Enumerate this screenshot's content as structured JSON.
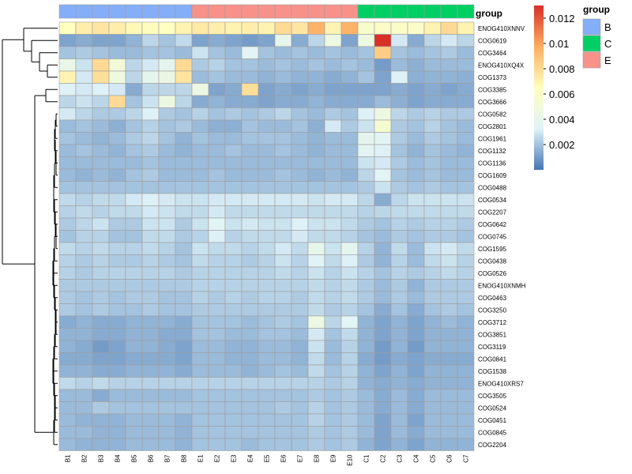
{
  "chart_data": {
    "type": "heatmap",
    "columns": [
      "B1",
      "B2",
      "B3",
      "B4",
      "B5",
      "B6",
      "B7",
      "B8",
      "E1",
      "E2",
      "E3",
      "E4",
      "E5",
      "E6",
      "E7",
      "E8",
      "E9",
      "E10",
      "C1",
      "C2",
      "C3",
      "C4",
      "C5",
      "C6",
      "C7"
    ],
    "column_groups": [
      "B",
      "B",
      "B",
      "B",
      "B",
      "B",
      "B",
      "B",
      "E",
      "E",
      "E",
      "E",
      "E",
      "E",
      "E",
      "E",
      "E",
      "E",
      "C",
      "C",
      "C",
      "C",
      "C",
      "C",
      "C"
    ],
    "rows": [
      "ENOG410XNNV",
      "COG0619",
      "COG3464",
      "ENOG410XQ4X",
      "COG1373",
      "COG3385",
      "COG3666",
      "COG0582",
      "COG2801",
      "COG1961",
      "COG1132",
      "COG1136",
      "COG1609",
      "COG0488",
      "COG0534",
      "COG2207",
      "COG0642",
      "COG0745",
      "COG1595",
      "COG0438",
      "COG0526",
      "ENOG410XNMH",
      "COG0463",
      "COG3250",
      "COG3712",
      "COG3851",
      "COG3119",
      "COG0841",
      "COG1538",
      "ENOG410XRS7",
      "COG3505",
      "COG0524",
      "COG0451",
      "COG0845",
      "COG2204"
    ],
    "values": [
      [
        0.0065,
        0.0072,
        0.0075,
        0.0072,
        0.0068,
        0.0066,
        0.0064,
        0.007,
        0.0074,
        0.0072,
        0.007,
        0.0072,
        0.007,
        0.008,
        0.0075,
        0.0095,
        0.007,
        0.0095,
        0.0058,
        0.006,
        0.006,
        0.006,
        0.007,
        0.008,
        0.007
      ],
      [
        0.0012,
        0.0014,
        0.0012,
        0.0012,
        0.0016,
        0.0025,
        0.002,
        0.0026,
        0.0012,
        0.0014,
        0.0012,
        0.001,
        0.0012,
        0.004,
        0.0014,
        0.0025,
        0.0045,
        0.0012,
        0.0045,
        0.013,
        0.003,
        0.0014,
        0.0025,
        0.003,
        0.0025
      ],
      [
        0.002,
        0.0022,
        0.002,
        0.0018,
        0.0018,
        0.002,
        0.002,
        0.0018,
        0.0028,
        0.002,
        0.0018,
        0.0035,
        0.002,
        0.0018,
        0.002,
        0.0018,
        0.002,
        0.0018,
        0.002,
        0.0085,
        0.002,
        0.0018,
        0.002,
        0.0022,
        0.0018
      ],
      [
        0.0042,
        0.0028,
        0.008,
        0.005,
        0.0025,
        0.003,
        0.0038,
        0.008,
        0.0022,
        0.0024,
        0.002,
        0.002,
        0.0018,
        0.002,
        0.0018,
        0.002,
        0.0018,
        0.002,
        0.0018,
        0.001,
        0.0018,
        0.0015,
        0.0018,
        0.0018,
        0.0018
      ],
      [
        0.007,
        0.003,
        0.0078,
        0.0048,
        0.0025,
        0.0038,
        0.0044,
        0.0076,
        0.0018,
        0.002,
        0.0018,
        0.0018,
        0.0016,
        0.0018,
        0.0016,
        0.0016,
        0.0014,
        0.0016,
        0.002,
        0.0012,
        0.0032,
        0.0015,
        0.0016,
        0.0016,
        0.0015
      ],
      [
        0.0032,
        0.003,
        0.0032,
        0.003,
        0.0014,
        0.0025,
        0.0025,
        0.0025,
        0.0045,
        0.0012,
        0.0014,
        0.0078,
        0.0012,
        0.0014,
        0.0012,
        0.0014,
        0.0012,
        0.0012,
        0.0012,
        0.0012,
        0.0014,
        0.0012,
        0.0014,
        0.0012,
        0.0014
      ],
      [
        0.0025,
        0.0028,
        0.0025,
        0.008,
        0.002,
        0.0028,
        0.0045,
        0.0025,
        0.0014,
        0.0016,
        0.0014,
        0.0014,
        0.0012,
        0.0014,
        0.0014,
        0.0016,
        0.0014,
        0.0014,
        0.0014,
        0.0018,
        0.0015,
        0.0012,
        0.0014,
        0.0014,
        0.0014
      ],
      [
        0.003,
        0.0025,
        0.0022,
        0.0022,
        0.0025,
        0.0032,
        0.0022,
        0.002,
        0.0024,
        0.002,
        0.0022,
        0.002,
        0.0022,
        0.0025,
        0.002,
        0.0018,
        0.0022,
        0.002,
        0.0032,
        0.0045,
        0.0025,
        0.0022,
        0.0024,
        0.0022,
        0.0022
      ],
      [
        0.0018,
        0.002,
        0.0018,
        0.0015,
        0.002,
        0.0024,
        0.002,
        0.0022,
        0.0018,
        0.0015,
        0.0015,
        0.002,
        0.0018,
        0.0018,
        0.002,
        0.0015,
        0.003,
        0.0022,
        0.0028,
        0.0055,
        0.0022,
        0.002,
        0.0024,
        0.002,
        0.0018
      ],
      [
        0.002,
        0.0018,
        0.0016,
        0.0018,
        0.0022,
        0.0025,
        0.002,
        0.0016,
        0.002,
        0.0018,
        0.0018,
        0.002,
        0.002,
        0.002,
        0.0018,
        0.0016,
        0.0018,
        0.0018,
        0.0038,
        0.0035,
        0.0022,
        0.0018,
        0.0022,
        0.002,
        0.0018
      ],
      [
        0.0018,
        0.002,
        0.0018,
        0.0016,
        0.002,
        0.0022,
        0.0018,
        0.0016,
        0.0018,
        0.0018,
        0.002,
        0.0018,
        0.0018,
        0.002,
        0.0018,
        0.0016,
        0.0018,
        0.0018,
        0.0036,
        0.0032,
        0.002,
        0.0016,
        0.002,
        0.0018,
        0.0016
      ],
      [
        0.0018,
        0.0018,
        0.0018,
        0.0018,
        0.0018,
        0.002,
        0.0018,
        0.0018,
        0.0018,
        0.0018,
        0.0018,
        0.0018,
        0.0018,
        0.0018,
        0.0018,
        0.0018,
        0.0018,
        0.0018,
        0.0028,
        0.003,
        0.0022,
        0.0018,
        0.002,
        0.0018,
        0.0018
      ],
      [
        0.0018,
        0.0016,
        0.0018,
        0.0016,
        0.002,
        0.0022,
        0.0018,
        0.0018,
        0.0018,
        0.002,
        0.0018,
        0.0018,
        0.0018,
        0.002,
        0.0018,
        0.0016,
        0.0018,
        0.0016,
        0.0025,
        0.0035,
        0.002,
        0.0018,
        0.002,
        0.0018,
        0.0018
      ],
      [
        0.002,
        0.002,
        0.002,
        0.002,
        0.002,
        0.002,
        0.002,
        0.002,
        0.002,
        0.002,
        0.002,
        0.002,
        0.002,
        0.002,
        0.002,
        0.002,
        0.002,
        0.002,
        0.0022,
        0.0028,
        0.0022,
        0.002,
        0.0022,
        0.002,
        0.002
      ],
      [
        0.0026,
        0.0024,
        0.0026,
        0.0026,
        0.003,
        0.0032,
        0.003,
        0.0028,
        0.0028,
        0.003,
        0.003,
        0.003,
        0.003,
        0.003,
        0.003,
        0.0028,
        0.003,
        0.003,
        0.0025,
        0.0014,
        0.0025,
        0.0028,
        0.0028,
        0.0028,
        0.0028
      ],
      [
        0.0024,
        0.0026,
        0.0024,
        0.0026,
        0.0026,
        0.003,
        0.0028,
        0.0026,
        0.0026,
        0.003,
        0.0026,
        0.0026,
        0.0026,
        0.0026,
        0.0026,
        0.0026,
        0.0026,
        0.0026,
        0.0024,
        0.0025,
        0.0026,
        0.0026,
        0.0026,
        0.0026,
        0.0026
      ],
      [
        0.0022,
        0.0025,
        0.0028,
        0.0022,
        0.0022,
        0.0028,
        0.0028,
        0.0022,
        0.0028,
        0.0035,
        0.0028,
        0.003,
        0.0028,
        0.0028,
        0.0032,
        0.0028,
        0.0028,
        0.0026,
        0.0022,
        0.002,
        0.0024,
        0.0022,
        0.0024,
        0.0024,
        0.0022
      ],
      [
        0.002,
        0.0024,
        0.0024,
        0.002,
        0.002,
        0.0026,
        0.0026,
        0.0022,
        0.0024,
        0.0032,
        0.0024,
        0.0026,
        0.0026,
        0.0026,
        0.003,
        0.0026,
        0.0026,
        0.0024,
        0.002,
        0.0018,
        0.0022,
        0.002,
        0.0022,
        0.0022,
        0.002
      ],
      [
        0.0026,
        0.0024,
        0.0026,
        0.0024,
        0.0024,
        0.0026,
        0.0024,
        0.002,
        0.0028,
        0.0026,
        0.0026,
        0.0024,
        0.0026,
        0.003,
        0.0026,
        0.004,
        0.0028,
        0.0038,
        0.0024,
        0.0016,
        0.0026,
        0.0018,
        0.0028,
        0.003,
        0.0026
      ],
      [
        0.0024,
        0.0022,
        0.0024,
        0.0022,
        0.0022,
        0.0024,
        0.0022,
        0.002,
        0.0026,
        0.0024,
        0.0024,
        0.0022,
        0.0024,
        0.0028,
        0.0024,
        0.0034,
        0.0026,
        0.0032,
        0.0022,
        0.0016,
        0.0024,
        0.0018,
        0.0026,
        0.0028,
        0.0024
      ],
      [
        0.0024,
        0.0022,
        0.0024,
        0.0024,
        0.0024,
        0.0024,
        0.0024,
        0.0022,
        0.0024,
        0.0024,
        0.0024,
        0.0024,
        0.0024,
        0.0026,
        0.0024,
        0.0028,
        0.0024,
        0.0028,
        0.0024,
        0.002,
        0.0024,
        0.0022,
        0.0024,
        0.0026,
        0.0024
      ],
      [
        0.0022,
        0.0022,
        0.0022,
        0.0022,
        0.0022,
        0.0022,
        0.0022,
        0.0022,
        0.0024,
        0.0024,
        0.0024,
        0.0024,
        0.0024,
        0.0024,
        0.0024,
        0.0026,
        0.0024,
        0.0026,
        0.0022,
        0.0018,
        0.0022,
        0.0016,
        0.0022,
        0.0022,
        0.0022
      ],
      [
        0.0022,
        0.002,
        0.0022,
        0.002,
        0.0022,
        0.0022,
        0.002,
        0.002,
        0.0024,
        0.0022,
        0.0024,
        0.0022,
        0.0024,
        0.0024,
        0.0022,
        0.0026,
        0.0024,
        0.0026,
        0.0022,
        0.0018,
        0.0022,
        0.0018,
        0.0022,
        0.0022,
        0.0022
      ],
      [
        0.0022,
        0.002,
        0.0022,
        0.002,
        0.002,
        0.0022,
        0.002,
        0.002,
        0.0022,
        0.0022,
        0.0022,
        0.0022,
        0.0022,
        0.0022,
        0.0022,
        0.0026,
        0.0022,
        0.0024,
        0.002,
        0.0014,
        0.002,
        0.0014,
        0.002,
        0.0022,
        0.002
      ],
      [
        0.0014,
        0.0016,
        0.0014,
        0.0014,
        0.0016,
        0.0016,
        0.0016,
        0.0014,
        0.002,
        0.002,
        0.002,
        0.0018,
        0.002,
        0.0022,
        0.002,
        0.0045,
        0.0025,
        0.0035,
        0.0016,
        0.0012,
        0.0016,
        0.0012,
        0.0016,
        0.0018,
        0.0016
      ],
      [
        0.0016,
        0.0016,
        0.0014,
        0.0014,
        0.0016,
        0.0016,
        0.0014,
        0.0014,
        0.002,
        0.002,
        0.0018,
        0.0018,
        0.002,
        0.002,
        0.0018,
        0.003,
        0.002,
        0.0026,
        0.0016,
        0.0012,
        0.0016,
        0.0012,
        0.0016,
        0.0016,
        0.0016
      ],
      [
        0.0016,
        0.0014,
        0.001,
        0.0012,
        0.0016,
        0.0016,
        0.0014,
        0.0012,
        0.0018,
        0.0018,
        0.0016,
        0.0016,
        0.0018,
        0.0018,
        0.0016,
        0.0028,
        0.0018,
        0.0024,
        0.0016,
        0.001,
        0.0016,
        0.001,
        0.0016,
        0.0016,
        0.0016
      ],
      [
        0.0014,
        0.0014,
        0.0012,
        0.0012,
        0.0014,
        0.0014,
        0.0014,
        0.0012,
        0.0018,
        0.0018,
        0.0016,
        0.0016,
        0.0018,
        0.0018,
        0.0016,
        0.0026,
        0.0018,
        0.0024,
        0.0014,
        0.001,
        0.0014,
        0.0012,
        0.0014,
        0.0014,
        0.0014
      ],
      [
        0.0016,
        0.0016,
        0.0014,
        0.0014,
        0.0016,
        0.0016,
        0.0016,
        0.0014,
        0.0018,
        0.0018,
        0.0018,
        0.0016,
        0.0018,
        0.002,
        0.0018,
        0.0026,
        0.002,
        0.0024,
        0.0016,
        0.0012,
        0.0016,
        0.0012,
        0.0016,
        0.0016,
        0.0016
      ],
      [
        0.0026,
        0.0024,
        0.0026,
        0.0024,
        0.0024,
        0.0024,
        0.0024,
        0.0024,
        0.0024,
        0.0024,
        0.0024,
        0.0024,
        0.0024,
        0.0024,
        0.0024,
        0.0024,
        0.0022,
        0.0024,
        0.0016,
        0.0014,
        0.0016,
        0.0014,
        0.0016,
        0.0016,
        0.0016
      ],
      [
        0.0018,
        0.0018,
        0.0014,
        0.0018,
        0.0018,
        0.0018,
        0.0018,
        0.0018,
        0.002,
        0.002,
        0.002,
        0.002,
        0.002,
        0.002,
        0.002,
        0.0022,
        0.002,
        0.0022,
        0.0018,
        0.0014,
        0.0018,
        0.0014,
        0.0018,
        0.0018,
        0.0018
      ],
      [
        0.0018,
        0.0018,
        0.0022,
        0.002,
        0.002,
        0.002,
        0.002,
        0.002,
        0.002,
        0.002,
        0.002,
        0.002,
        0.002,
        0.0022,
        0.002,
        0.0024,
        0.002,
        0.0022,
        0.0018,
        0.0014,
        0.0018,
        0.0014,
        0.0018,
        0.0018,
        0.0018
      ],
      [
        0.0018,
        0.0016,
        0.0016,
        0.0016,
        0.0018,
        0.0018,
        0.0018,
        0.0016,
        0.002,
        0.002,
        0.002,
        0.002,
        0.002,
        0.002,
        0.002,
        0.0024,
        0.002,
        0.0022,
        0.0018,
        0.0012,
        0.0018,
        0.0012,
        0.0018,
        0.0018,
        0.0018
      ],
      [
        0.0018,
        0.0018,
        0.0016,
        0.0016,
        0.0018,
        0.0018,
        0.0018,
        0.0016,
        0.002,
        0.002,
        0.002,
        0.002,
        0.002,
        0.002,
        0.002,
        0.0022,
        0.002,
        0.0022,
        0.0018,
        0.0012,
        0.0018,
        0.0014,
        0.0018,
        0.0018,
        0.0018
      ],
      [
        0.0018,
        0.0016,
        0.0016,
        0.0016,
        0.0018,
        0.0018,
        0.0018,
        0.0016,
        0.002,
        0.002,
        0.002,
        0.0018,
        0.002,
        0.002,
        0.002,
        0.0022,
        0.002,
        0.0022,
        0.0016,
        0.0012,
        0.0016,
        0.0012,
        0.0016,
        0.0016,
        0.0016
      ]
    ],
    "value_range": [
      0,
      0.013
    ],
    "colorbar_ticks": [
      0.002,
      0.004,
      0.006,
      0.008,
      0.01,
      0.012
    ],
    "colorbar_tick_labels": [
      "0.002",
      "0.004",
      "0.006",
      "0.008",
      "0.01",
      "0.012"
    ],
    "color_stops": [
      "#4575B4",
      "#E0F3F8",
      "#FFFFBF",
      "#FDAE61",
      "#D73027"
    ],
    "annotation_title": "group",
    "legend": {
      "title": "group",
      "entries": [
        {
          "label": "B",
          "color": "#84AEF8"
        },
        {
          "label": "C",
          "color": "#00D064"
        },
        {
          "label": "E",
          "color": "#F8918A"
        }
      ]
    }
  }
}
